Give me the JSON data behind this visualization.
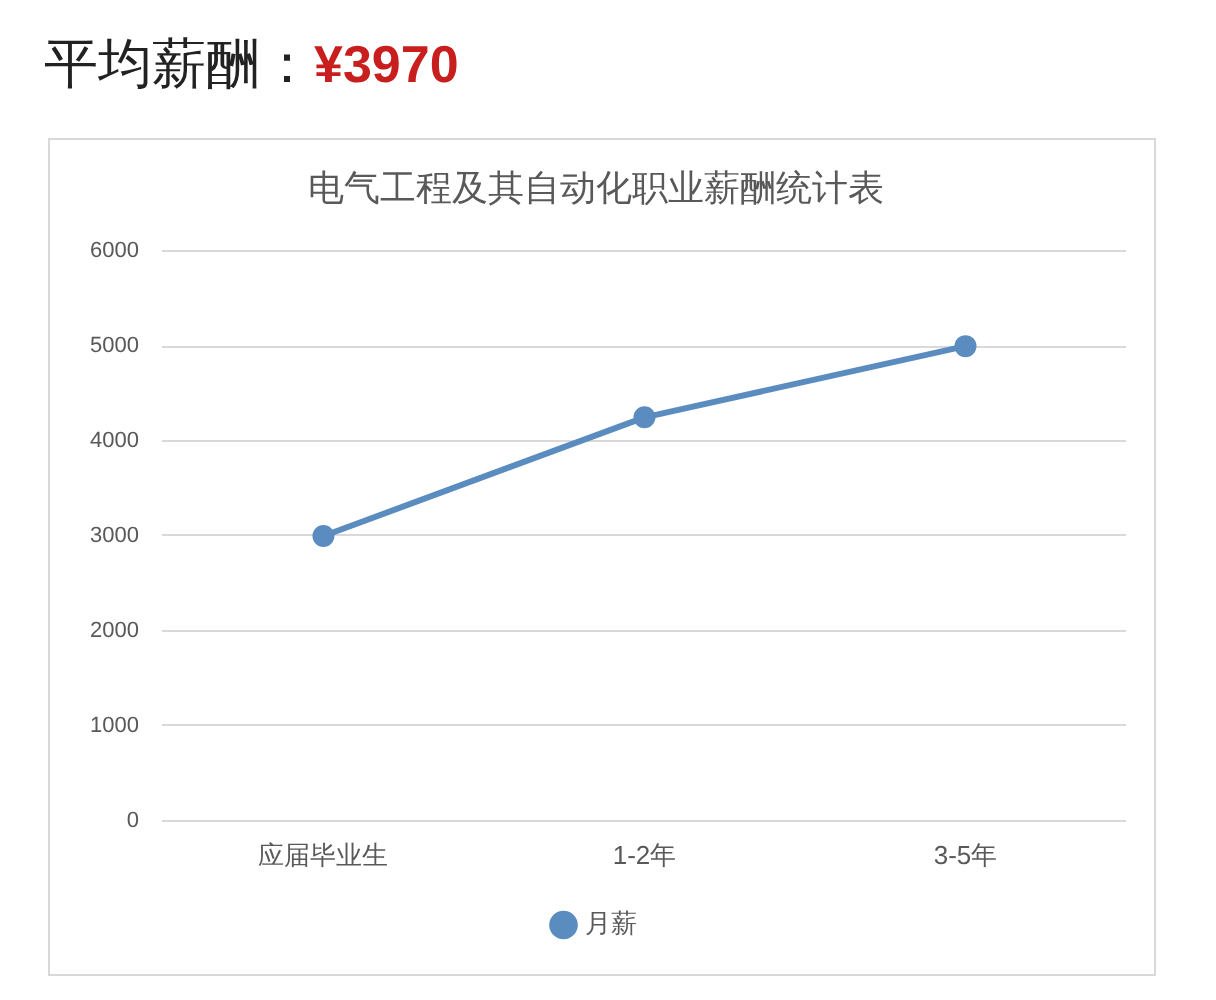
{
  "chart_data": {
    "type": "line",
    "title": "电气工程及其自动化职业薪酬统计表",
    "annotations": [
      "平均薪酬：",
      "¥3970"
    ],
    "categories": [
      "应届毕业生",
      "1-2年",
      "3-5年"
    ],
    "series": [
      {
        "name": "月薪",
        "color": "#5b8cc0",
        "values": [
          3000,
          4250,
          5000
        ]
      }
    ],
    "ylim": [
      0,
      6000
    ],
    "yticks": [
      0,
      1000,
      2000,
      3000,
      4000,
      5000,
      6000
    ],
    "grid": "y",
    "legend": "bottom",
    "marker": "circle",
    "line_style": "solid"
  }
}
